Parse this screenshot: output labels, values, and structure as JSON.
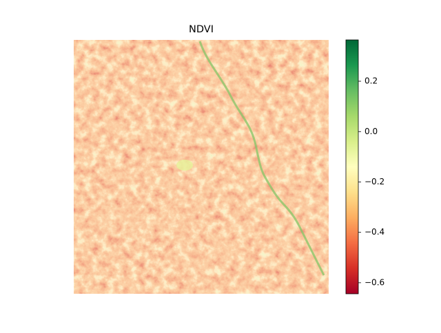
{
  "chart_data": {
    "type": "image",
    "title": "NDVI",
    "colorbar": {
      "clim": [
        -0.644,
        0.364
      ],
      "ticks": [
        {
          "value": -0.6,
          "label": "−0.6"
        },
        {
          "value": -0.4,
          "label": "−0.4"
        },
        {
          "value": -0.2,
          "label": "−0.2"
        },
        {
          "value": 0.0,
          "label": "0.0"
        },
        0.2
      ],
      "cmap": "RdYlGn",
      "cmap_colors": [
        "#a50026",
        "#d73027",
        "#f46d43",
        "#fdae61",
        "#fee08b",
        "#ffffbf",
        "#d9ef8b",
        "#a6d96a",
        "#66bd63",
        "#1a9850",
        "#006837"
      ]
    }
  }
}
